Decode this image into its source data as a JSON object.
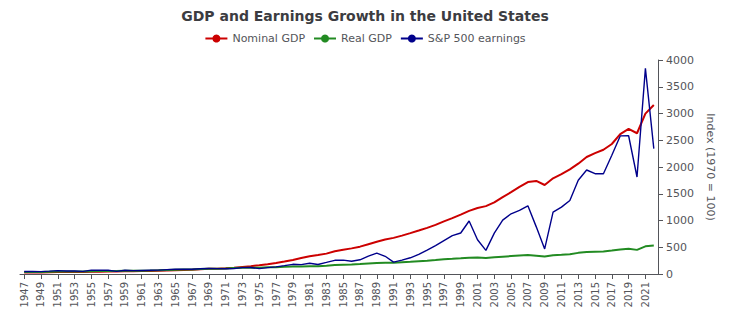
{
  "chart_data": {
    "type": "line",
    "title": "GDP and Earnings Growth in the United States",
    "ylabel": "Index (1970 = 100)",
    "x": [
      1947,
      1948,
      1949,
      1950,
      1951,
      1952,
      1953,
      1954,
      1955,
      1956,
      1957,
      1958,
      1959,
      1960,
      1961,
      1962,
      1963,
      1964,
      1965,
      1966,
      1967,
      1968,
      1969,
      1970,
      1971,
      1972,
      1973,
      1974,
      1975,
      1976,
      1977,
      1978,
      1979,
      1980,
      1981,
      1982,
      1983,
      1984,
      1985,
      1986,
      1987,
      1988,
      1989,
      1990,
      1991,
      1992,
      1993,
      1994,
      1995,
      1996,
      1997,
      1998,
      1999,
      2000,
      2001,
      2002,
      2003,
      2004,
      2005,
      2006,
      2007,
      2008,
      2009,
      2010,
      2011,
      2012,
      2013,
      2014,
      2015,
      2016,
      2017,
      2018,
      2019,
      2020,
      2021,
      2022
    ],
    "series": [
      {
        "name": "Nominal GDP",
        "color": "#cc0000",
        "values": [
          28,
          30,
          30,
          33,
          36,
          38,
          39,
          39,
          42,
          44,
          46,
          47,
          50,
          52,
          54,
          57,
          61,
          65,
          71,
          76,
          81,
          88,
          96,
          100,
          109,
          119,
          133,
          147,
          164,
          183,
          206,
          232,
          262,
          298,
          333,
          354,
          381,
          424,
          453,
          479,
          511,
          557,
          602,
          644,
          675,
          717,
          764,
          812,
          862,
          919,
          984,
          1044,
          1110,
          1180,
          1234,
          1269,
          1338,
          1437,
          1530,
          1627,
          1719,
          1739,
          1664,
          1789,
          1868,
          1955,
          2062,
          2187,
          2258,
          2322,
          2430,
          2613,
          2711,
          2631,
          2997,
          3160
        ]
      },
      {
        "name": "Real GDP",
        "color": "#228B22",
        "values": [
          36,
          38,
          37,
          42,
          45,
          46,
          48,
          48,
          52,
          54,
          55,
          55,
          60,
          61,
          63,
          66,
          70,
          75,
          80,
          83,
          86,
          92,
          96,
          100,
          104,
          112,
          118,
          116,
          118,
          125,
          128,
          135,
          140,
          140,
          146,
          146,
          155,
          168,
          174,
          179,
          185,
          196,
          204,
          208,
          210,
          220,
          228,
          238,
          248,
          260,
          274,
          283,
          294,
          306,
          307,
          300,
          313,
          324,
          335,
          346,
          354,
          343,
          326,
          351,
          358,
          370,
          395,
          409,
          415,
          421,
          438,
          460,
          470,
          451,
          517,
          532
        ]
      },
      {
        "name": "S&P 500 earnings",
        "color": "#00008B",
        "values": [
          47,
          50,
          44,
          53,
          63,
          56,
          56,
          50,
          72,
          69,
          69,
          50,
          69,
          63,
          66,
          69,
          72,
          81,
          88,
          91,
          88,
          97,
          103,
          100,
          97,
          103,
          119,
          122,
          100,
          119,
          134,
          156,
          181,
          175,
          200,
          178,
          216,
          256,
          259,
          238,
          266,
          334,
          391,
          331,
          222,
          259,
          303,
          366,
          447,
          531,
          625,
          716,
          766,
          991,
          641,
          441,
          763,
          1006,
          1125,
          1188,
          1275,
          881,
          469,
          1156,
          1250,
          1375,
          1753,
          1944,
          1875,
          1875,
          2219,
          2581,
          2584,
          1813,
          3844,
          2344
        ]
      }
    ],
    "xlim": [
      1946.5,
      2022.5
    ],
    "xticks": [
      1947,
      1949,
      1951,
      1953,
      1955,
      1957,
      1959,
      1961,
      1963,
      1965,
      1967,
      1969,
      1971,
      1973,
      1975,
      1977,
      1979,
      1981,
      1983,
      1985,
      1987,
      1989,
      1991,
      1993,
      1995,
      1997,
      1999,
      2001,
      2003,
      2005,
      2007,
      2009,
      2011,
      2013,
      2015,
      2017,
      2019,
      2021
    ],
    "ylim": [
      0,
      4000
    ],
    "yticks": [
      0,
      500,
      1000,
      1500,
      2000,
      2500,
      3000,
      3500,
      4000
    ],
    "grid": false,
    "legend": "top"
  }
}
